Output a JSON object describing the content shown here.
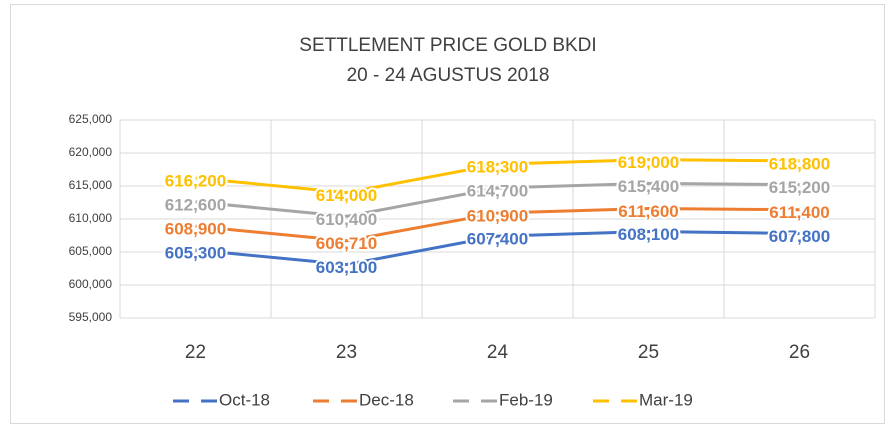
{
  "chart_data": {
    "type": "line",
    "title": "SETTLEMENT PRICE GOLD BKDI",
    "subtitle": "20 - 24 AGUSTUS 2018",
    "categories": [
      "22",
      "23",
      "24",
      "25",
      "26"
    ],
    "series": [
      {
        "name": "Oct-18",
        "color": "#4472c4",
        "values": [
          605300,
          603100,
          607400,
          608100,
          607800
        ],
        "value_labels": [
          "605,300",
          "603,100",
          "607,400",
          "608,100",
          "607,800"
        ]
      },
      {
        "name": "Dec-18",
        "color": "#ed7d31",
        "values": [
          608900,
          606710,
          610900,
          611600,
          611400
        ],
        "value_labels": [
          "608,900",
          "606,710",
          "610,900",
          "611,600",
          "611,400"
        ]
      },
      {
        "name": "Feb-19",
        "color": "#a5a5a5",
        "values": [
          612600,
          610400,
          614700,
          615400,
          615200
        ],
        "value_labels": [
          "612,600",
          "610,400",
          "614,700",
          "615,400",
          "615,200"
        ]
      },
      {
        "name": "Mar-19",
        "color": "#ffc000",
        "values": [
          616200,
          614000,
          618300,
          619000,
          618800
        ],
        "value_labels": [
          "616,200",
          "614,000",
          "618,300",
          "619,000",
          "618,800"
        ]
      }
    ],
    "ylim": [
      595000,
      625000
    ],
    "yticks": [
      {
        "value": 595000,
        "label": "595,000"
      },
      {
        "value": 600000,
        "label": "600,000"
      },
      {
        "value": 605000,
        "label": "605,000"
      },
      {
        "value": 610000,
        "label": "610,000"
      },
      {
        "value": 615000,
        "label": "615,000"
      },
      {
        "value": 620000,
        "label": "620,000"
      },
      {
        "value": 625000,
        "label": "625,000"
      }
    ],
    "grid": true,
    "legend": "bottom"
  }
}
